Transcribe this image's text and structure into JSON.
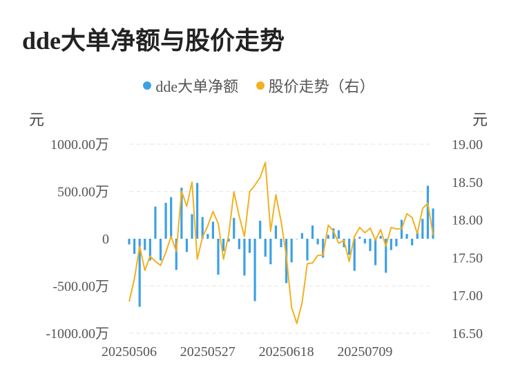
{
  "title": "dde大单净额与股价走势",
  "legend": {
    "series1": "dde大单净额",
    "series2": "股价走势（右）"
  },
  "units": {
    "left": "元",
    "right": "元"
  },
  "colors": {
    "bar": "#3ba0e6",
    "line": "#f2b01e",
    "grid": "#e6e6e6",
    "text": "#555555"
  },
  "chart_data": {
    "type": "bar+line",
    "title": "dde大单净额与股价走势",
    "left_axis": {
      "ticks": [
        1000,
        500,
        0,
        -500,
        -1000
      ],
      "tick_labels": [
        "1000.00万",
        "500.00万",
        "0",
        "-500.00万",
        "-1000.00万"
      ],
      "unit": "元",
      "ylim": [
        -1000,
        1000
      ]
    },
    "right_axis": {
      "ticks": [
        19.0,
        18.5,
        18.0,
        17.5,
        17.0,
        16.5
      ],
      "tick_labels": [
        "19.00",
        "18.50",
        "18.00",
        "17.50",
        "17.00",
        "16.50"
      ],
      "unit": "元",
      "ylim": [
        16.5,
        19.0
      ]
    },
    "x_tick_labels": [
      "20250506",
      "20250527",
      "20250618",
      "20250709"
    ],
    "x_tick_indices": [
      0,
      15,
      30,
      45
    ],
    "grid": true,
    "legend_position": "top",
    "series": [
      {
        "name": "dde大单净额",
        "kind": "bar",
        "axis": "left",
        "unit": "万元",
        "values": [
          -60,
          -160,
          -720,
          -120,
          -230,
          340,
          -230,
          380,
          440,
          -330,
          540,
          -140,
          260,
          590,
          230,
          50,
          180,
          -380,
          -130,
          -30,
          220,
          -110,
          -390,
          -150,
          -660,
          190,
          -190,
          -270,
          140,
          -90,
          -470,
          -250,
          0,
          60,
          -230,
          140,
          -60,
          -200,
          40,
          110,
          90,
          -90,
          -170,
          -340,
          20,
          -50,
          -130,
          -280,
          30,
          -360,
          -120,
          -80,
          200,
          50,
          -70,
          70,
          210,
          560,
          320
        ]
      },
      {
        "name": "股价走势（右）",
        "kind": "line",
        "axis": "right",
        "unit": "元",
        "values": [
          16.92,
          17.22,
          17.65,
          17.33,
          17.52,
          17.45,
          17.4,
          17.57,
          17.78,
          17.58,
          18.38,
          18.18,
          18.5,
          17.48,
          17.77,
          17.92,
          18.11,
          17.95,
          17.48,
          17.8,
          18.37,
          18.05,
          17.78,
          18.37,
          18.46,
          18.56,
          18.76,
          17.85,
          18.33,
          17.98,
          17.52,
          16.84,
          16.63,
          16.9,
          17.42,
          17.43,
          17.53,
          17.53,
          17.93,
          17.85,
          17.69,
          17.73,
          17.45,
          17.78,
          17.9,
          17.83,
          17.89,
          17.73,
          17.87,
          17.65,
          17.9,
          17.88,
          17.88,
          18.08,
          18.03,
          17.82,
          18.15,
          18.22,
          17.8
        ]
      }
    ]
  }
}
